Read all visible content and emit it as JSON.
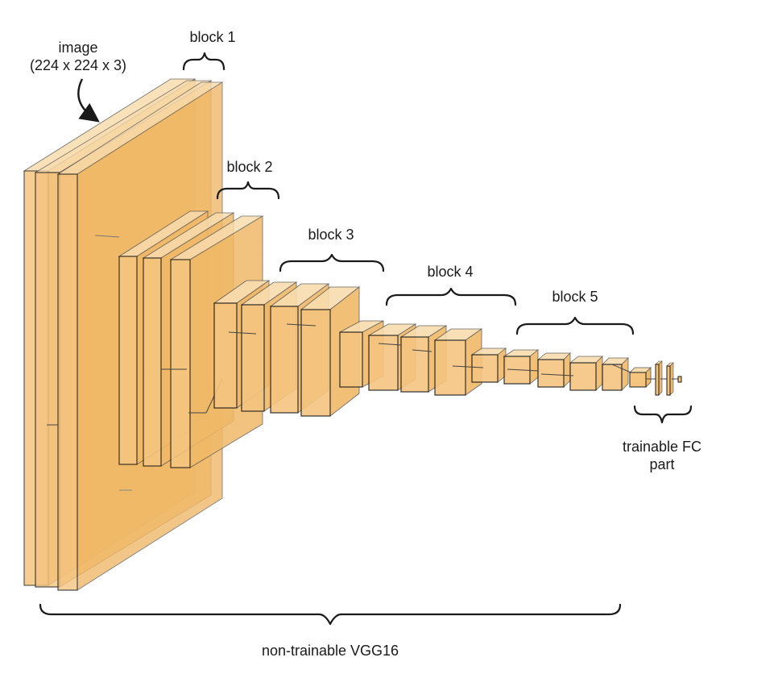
{
  "labels": {
    "input_line1": "image",
    "input_line2": "(224 x 224 x 3)",
    "block1": "block 1",
    "block2": "block 2",
    "block3": "block 3",
    "block4": "block 4",
    "block5": "block 5",
    "fc_line1": "trainable FC",
    "fc_line2": "part",
    "base": "non-trainable VGG16"
  },
  "colors": {
    "layer_front": "#f5c580",
    "layer_top": "#f9dcae",
    "layer_side": "#f0b968",
    "stroke": "#1a1a1a"
  }
}
